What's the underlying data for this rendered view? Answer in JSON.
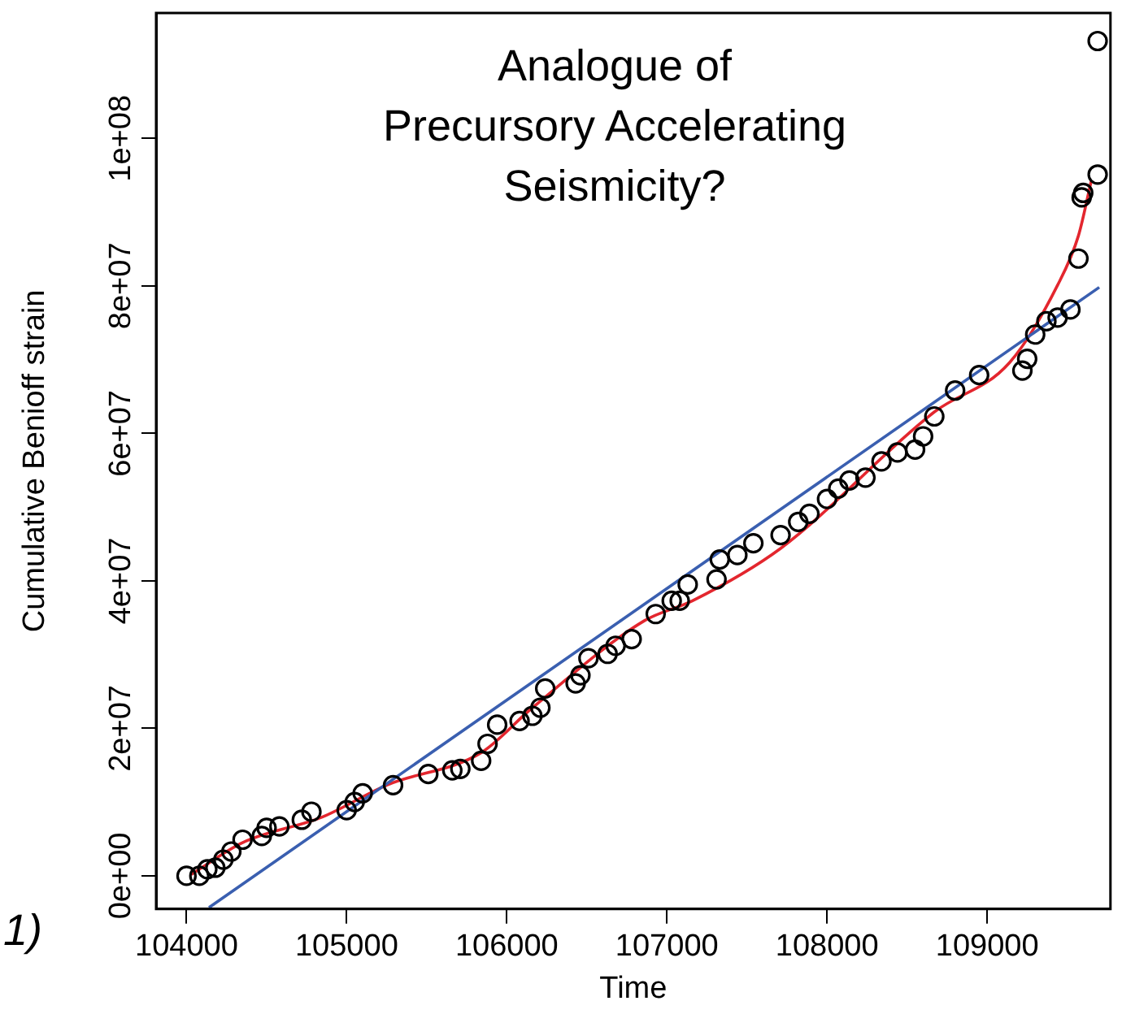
{
  "chart_data": {
    "type": "scatter",
    "xlabel": "Time",
    "ylabel": "Cumulative Benioff strain",
    "annotations": [
      "Analogue of\nPrecursory Accelerating\nSeismicity?",
      "1)"
    ],
    "xlim": [
      103810,
      109770
    ],
    "ylim": [
      -4500000,
      117000000
    ],
    "xticks": [
      104000,
      105000,
      106000,
      107000,
      108000,
      109000
    ],
    "yticks": [
      {
        "value": 0,
        "label": "0e+00"
      },
      {
        "value": 20000000,
        "label": "2e+07"
      },
      {
        "value": 40000000,
        "label": "4e+07"
      },
      {
        "value": 60000000,
        "label": "6e+07"
      },
      {
        "value": 80000000,
        "label": "8e+07"
      },
      {
        "value": 100000000,
        "label": "1e+08"
      }
    ],
    "grid": false,
    "legend": false,
    "series": [
      {
        "marker": "circle",
        "color": "#000000",
        "x": [
          104000,
          104080,
          104130,
          104180,
          104230,
          104280,
          104350,
          104470,
          104500,
          104580,
          104720,
          104780,
          105000,
          105050,
          105100,
          105290,
          105510,
          105660,
          105710,
          105840,
          105880,
          105940,
          106080,
          106160,
          106210,
          106240,
          106430,
          106460,
          106510,
          106630,
          106680,
          106780,
          106930,
          107030,
          107080,
          107130,
          107310,
          107330,
          107440,
          107540,
          107710,
          107820,
          107890,
          108000,
          108070,
          108140,
          108240,
          108340,
          108440,
          108550,
          108600,
          108670,
          108800,
          108950,
          109220,
          109250,
          109300,
          109370,
          109440,
          109520,
          109570,
          109590,
          109600,
          109690,
          109690
        ],
        "values": [
          0,
          0,
          900000,
          1100000,
          2200000,
          3300000,
          4900000,
          5400000,
          6500000,
          6700000,
          7600000,
          8700000,
          8900000,
          10000000,
          11200000,
          12300000,
          13800000,
          14300000,
          14500000,
          15600000,
          17900000,
          20500000,
          21000000,
          21700000,
          22800000,
          25400000,
          26100000,
          27200000,
          29500000,
          30100000,
          31200000,
          32100000,
          35500000,
          37300000,
          37300000,
          39500000,
          40200000,
          42900000,
          43500000,
          45100000,
          46200000,
          48000000,
          49100000,
          51100000,
          52500000,
          53600000,
          54000000,
          56200000,
          57400000,
          57800000,
          59600000,
          62300000,
          65800000,
          67900000,
          68500000,
          70100000,
          73400000,
          75200000,
          75700000,
          76800000,
          83700000,
          92000000,
          92600000,
          95100000,
          113200000
        ]
      },
      {
        "type": "line",
        "color": "#3a5fb0",
        "x": [
          104140,
          109700
        ],
        "values": [
          -4300000,
          79800000
        ]
      },
      {
        "type": "line",
        "color": "#e3262e",
        "x": [
          104030,
          104350,
          104850,
          105250,
          105840,
          106160,
          106860,
          107160,
          107710,
          108670,
          109140,
          109440,
          109570,
          109650
        ],
        "values": [
          200000,
          4500000,
          8000000,
          12300000,
          16700000,
          22800000,
          34600000,
          37300000,
          44400000,
          62900000,
          69600000,
          80100000,
          86800000,
          94200000
        ]
      }
    ]
  }
}
